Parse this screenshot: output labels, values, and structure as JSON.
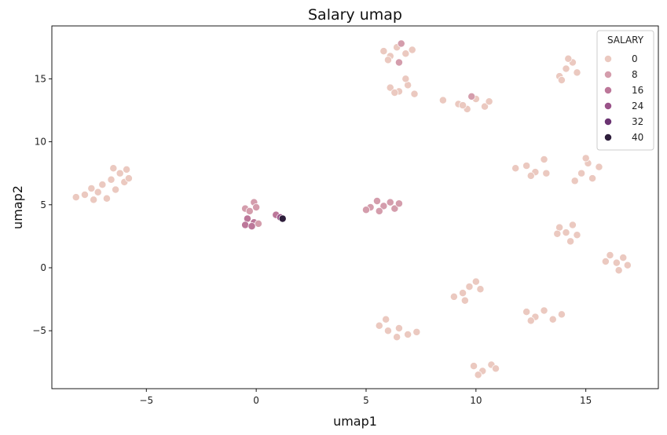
{
  "chart_data": {
    "type": "scatter",
    "title": "Salary umap",
    "xlabel": "umap1",
    "ylabel": "umap2",
    "xlim": [
      -9.3,
      18.3
    ],
    "ylim": [
      -9.6,
      19.2
    ],
    "xticks": [
      -5,
      0,
      5,
      10,
      15
    ],
    "yticks": [
      -5,
      0,
      5,
      10,
      15
    ],
    "xtick_labels": [
      "−5",
      "0",
      "5",
      "10",
      "15"
    ],
    "ytick_labels": [
      "−5",
      "0",
      "5",
      "10",
      "15"
    ],
    "grid": false,
    "legend": {
      "title": "SALARY",
      "placement": "top-right",
      "entries": [
        {
          "label": "0",
          "value": 0
        },
        {
          "label": "8",
          "value": 8
        },
        {
          "label": "16",
          "value": 16
        },
        {
          "label": "24",
          "value": 24
        },
        {
          "label": "32",
          "value": 32
        },
        {
          "label": "40",
          "value": 40
        }
      ]
    },
    "hue_colors": [
      "#ebc9c0",
      "#d49dac",
      "#bc7799",
      "#9a5389",
      "#6b3472",
      "#2e1e3b"
    ],
    "points": [
      {
        "x": -7.8,
        "y": 5.8,
        "v": 0
      },
      {
        "x": -7.5,
        "y": 6.3,
        "v": 0
      },
      {
        "x": -7.2,
        "y": 6.0,
        "v": 0
      },
      {
        "x": -7.0,
        "y": 6.6,
        "v": 0
      },
      {
        "x": -6.8,
        "y": 5.5,
        "v": 0
      },
      {
        "x": -6.6,
        "y": 7.0,
        "v": 0
      },
      {
        "x": -6.4,
        "y": 6.2,
        "v": 0
      },
      {
        "x": -6.2,
        "y": 7.5,
        "v": 0
      },
      {
        "x": -6.0,
        "y": 6.8,
        "v": 0
      },
      {
        "x": -5.9,
        "y": 7.8,
        "v": 0
      },
      {
        "x": -8.2,
        "y": 5.6,
        "v": 0
      },
      {
        "x": -5.8,
        "y": 7.1,
        "v": 0
      },
      {
        "x": -7.4,
        "y": 5.4,
        "v": 0
      },
      {
        "x": -6.5,
        "y": 7.9,
        "v": 0
      },
      {
        "x": -0.5,
        "y": 4.7,
        "v": 8
      },
      {
        "x": -0.1,
        "y": 5.2,
        "v": 8
      },
      {
        "x": 0.0,
        "y": 4.8,
        "v": 8
      },
      {
        "x": -0.3,
        "y": 4.5,
        "v": 8
      },
      {
        "x": -0.4,
        "y": 3.9,
        "v": 16
      },
      {
        "x": -0.1,
        "y": 3.6,
        "v": 16
      },
      {
        "x": -0.5,
        "y": 3.4,
        "v": 16
      },
      {
        "x": 0.1,
        "y": 3.5,
        "v": 8
      },
      {
        "x": -0.2,
        "y": 3.3,
        "v": 16
      },
      {
        "x": 0.9,
        "y": 4.2,
        "v": 16
      },
      {
        "x": 1.1,
        "y": 4.0,
        "v": 24
      },
      {
        "x": 1.2,
        "y": 3.9,
        "v": 40
      },
      {
        "x": 5.2,
        "y": 4.8,
        "v": 8
      },
      {
        "x": 5.5,
        "y": 5.3,
        "v": 8
      },
      {
        "x": 5.8,
        "y": 4.9,
        "v": 8
      },
      {
        "x": 6.1,
        "y": 5.2,
        "v": 8
      },
      {
        "x": 6.3,
        "y": 4.7,
        "v": 8
      },
      {
        "x": 5.0,
        "y": 4.6,
        "v": 8
      },
      {
        "x": 5.6,
        "y": 4.5,
        "v": 8
      },
      {
        "x": 6.5,
        "y": 5.1,
        "v": 8
      },
      {
        "x": 5.8,
        "y": 17.2,
        "v": 0
      },
      {
        "x": 6.1,
        "y": 16.8,
        "v": 0
      },
      {
        "x": 6.4,
        "y": 17.5,
        "v": 0
      },
      {
        "x": 6.8,
        "y": 17.0,
        "v": 0
      },
      {
        "x": 7.1,
        "y": 17.3,
        "v": 0
      },
      {
        "x": 6.0,
        "y": 16.5,
        "v": 0
      },
      {
        "x": 6.6,
        "y": 17.8,
        "v": 8
      },
      {
        "x": 6.5,
        "y": 16.3,
        "v": 8
      },
      {
        "x": 6.1,
        "y": 14.3,
        "v": 0
      },
      {
        "x": 6.5,
        "y": 14.0,
        "v": 0
      },
      {
        "x": 6.9,
        "y": 14.5,
        "v": 0
      },
      {
        "x": 7.2,
        "y": 13.8,
        "v": 0
      },
      {
        "x": 6.8,
        "y": 15.0,
        "v": 0
      },
      {
        "x": 6.3,
        "y": 13.9,
        "v": 0
      },
      {
        "x": 8.5,
        "y": 13.3,
        "v": 0
      },
      {
        "x": 9.2,
        "y": 13.0,
        "v": 0
      },
      {
        "x": 9.6,
        "y": 12.6,
        "v": 0
      },
      {
        "x": 10.0,
        "y": 13.4,
        "v": 0
      },
      {
        "x": 10.4,
        "y": 12.8,
        "v": 0
      },
      {
        "x": 9.8,
        "y": 13.6,
        "v": 8
      },
      {
        "x": 10.6,
        "y": 13.2,
        "v": 0
      },
      {
        "x": 9.4,
        "y": 12.9,
        "v": 0
      },
      {
        "x": 13.8,
        "y": 15.2,
        "v": 0
      },
      {
        "x": 14.1,
        "y": 15.8,
        "v": 0
      },
      {
        "x": 14.4,
        "y": 16.3,
        "v": 0
      },
      {
        "x": 13.9,
        "y": 14.9,
        "v": 0
      },
      {
        "x": 14.6,
        "y": 15.5,
        "v": 0
      },
      {
        "x": 14.2,
        "y": 16.6,
        "v": 0
      },
      {
        "x": 11.8,
        "y": 7.9,
        "v": 0
      },
      {
        "x": 12.3,
        "y": 8.1,
        "v": 0
      },
      {
        "x": 12.7,
        "y": 7.6,
        "v": 0
      },
      {
        "x": 13.1,
        "y": 8.6,
        "v": 0
      },
      {
        "x": 12.5,
        "y": 7.3,
        "v": 0
      },
      {
        "x": 13.2,
        "y": 7.5,
        "v": 0
      },
      {
        "x": 14.5,
        "y": 6.9,
        "v": 0
      },
      {
        "x": 14.8,
        "y": 7.5,
        "v": 0
      },
      {
        "x": 15.1,
        "y": 8.3,
        "v": 0
      },
      {
        "x": 15.3,
        "y": 7.1,
        "v": 0
      },
      {
        "x": 15.6,
        "y": 8.0,
        "v": 0
      },
      {
        "x": 15.0,
        "y": 8.7,
        "v": 0
      },
      {
        "x": 13.8,
        "y": 3.2,
        "v": 0
      },
      {
        "x": 14.1,
        "y": 2.8,
        "v": 0
      },
      {
        "x": 14.4,
        "y": 3.4,
        "v": 0
      },
      {
        "x": 14.6,
        "y": 2.6,
        "v": 0
      },
      {
        "x": 14.3,
        "y": 2.1,
        "v": 0
      },
      {
        "x": 13.7,
        "y": 2.7,
        "v": 0
      },
      {
        "x": 16.1,
        "y": 1.0,
        "v": 0
      },
      {
        "x": 16.4,
        "y": 0.4,
        "v": 0
      },
      {
        "x": 16.7,
        "y": 0.8,
        "v": 0
      },
      {
        "x": 16.5,
        "y": -0.2,
        "v": 0
      },
      {
        "x": 16.9,
        "y": 0.2,
        "v": 0
      },
      {
        "x": 15.9,
        "y": 0.5,
        "v": 0
      },
      {
        "x": 9.0,
        "y": -2.3,
        "v": 0
      },
      {
        "x": 9.4,
        "y": -2.0,
        "v": 0
      },
      {
        "x": 9.7,
        "y": -1.5,
        "v": 0
      },
      {
        "x": 10.0,
        "y": -1.1,
        "v": 0
      },
      {
        "x": 9.5,
        "y": -2.6,
        "v": 0
      },
      {
        "x": 10.2,
        "y": -1.7,
        "v": 0
      },
      {
        "x": 5.6,
        "y": -4.6,
        "v": 0
      },
      {
        "x": 6.0,
        "y": -5.0,
        "v": 0
      },
      {
        "x": 6.5,
        "y": -4.8,
        "v": 0
      },
      {
        "x": 6.9,
        "y": -5.3,
        "v": 0
      },
      {
        "x": 7.3,
        "y": -5.1,
        "v": 0
      },
      {
        "x": 5.9,
        "y": -4.1,
        "v": 0
      },
      {
        "x": 6.4,
        "y": -5.5,
        "v": 0
      },
      {
        "x": 12.3,
        "y": -3.5,
        "v": 0
      },
      {
        "x": 12.7,
        "y": -3.9,
        "v": 0
      },
      {
        "x": 13.1,
        "y": -3.4,
        "v": 0
      },
      {
        "x": 13.5,
        "y": -4.1,
        "v": 0
      },
      {
        "x": 13.9,
        "y": -3.7,
        "v": 0
      },
      {
        "x": 12.5,
        "y": -4.2,
        "v": 0
      },
      {
        "x": 9.9,
        "y": -7.8,
        "v": 0
      },
      {
        "x": 10.3,
        "y": -8.2,
        "v": 0
      },
      {
        "x": 10.7,
        "y": -7.7,
        "v": 0
      },
      {
        "x": 10.1,
        "y": -8.5,
        "v": 0
      },
      {
        "x": 10.9,
        "y": -8.0,
        "v": 0
      }
    ]
  }
}
